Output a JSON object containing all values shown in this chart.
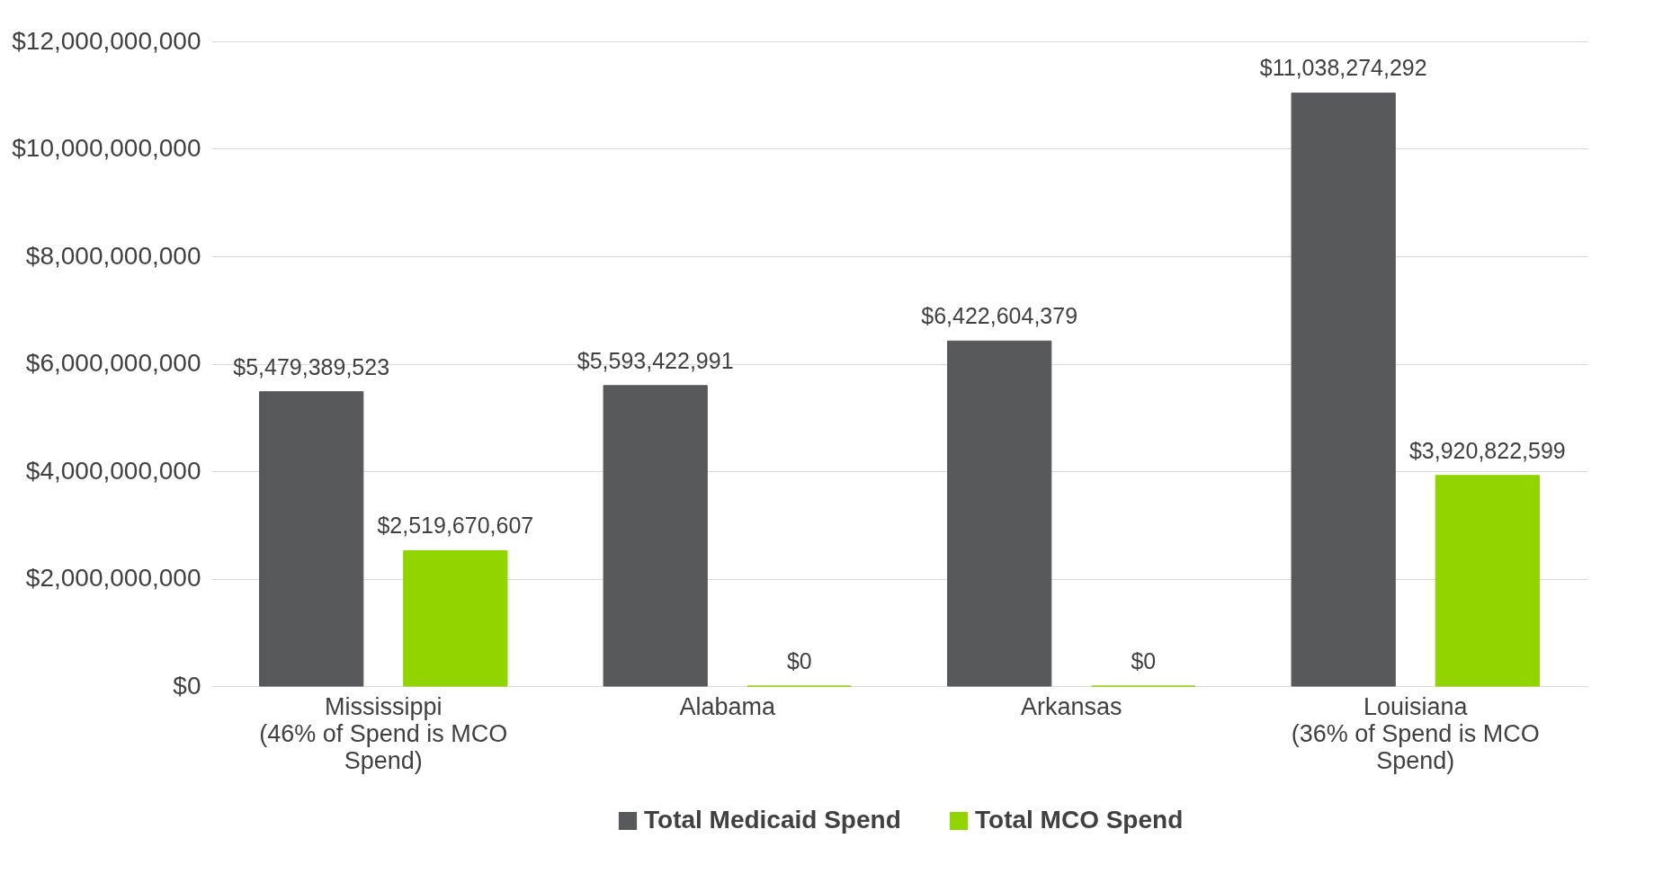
{
  "chart_data": {
    "type": "bar",
    "categories": [
      "Mississippi\n(46% of Spend is MCO\nSpend)",
      "Alabama",
      "Arkansas",
      "Louisiana\n(36% of Spend is MCO\nSpend)"
    ],
    "series": [
      {
        "name": "Total Medicaid Spend",
        "color": "#58595b",
        "values": [
          5479389523,
          5593422991,
          6422604379,
          11038274292
        ],
        "value_labels": [
          "$5,479,389,523",
          "$5,593,422,991",
          "$6,422,604,379",
          "$11,038,274,292"
        ]
      },
      {
        "name": "Total MCO Spend",
        "color": "#92d400",
        "values": [
          2519670607,
          0,
          0,
          3920822599
        ],
        "value_labels": [
          "$2,519,670,607",
          "$0",
          "$0",
          "$3,920,822,599"
        ]
      }
    ],
    "ylim": [
      0,
      12000000000
    ],
    "yticks": [
      {
        "value": 0,
        "label": "$0"
      },
      {
        "value": 2000000000,
        "label": "$2,000,000,000"
      },
      {
        "value": 4000000000,
        "label": "$4,000,000,000"
      },
      {
        "value": 6000000000,
        "label": "$6,000,000,000"
      },
      {
        "value": 8000000000,
        "label": "$8,000,000,000"
      },
      {
        "value": 10000000000,
        "label": "$10,000,000,000"
      },
      {
        "value": 12000000000,
        "label": "$12,000,000,000"
      }
    ],
    "grid": "y",
    "legend": "bottom"
  }
}
